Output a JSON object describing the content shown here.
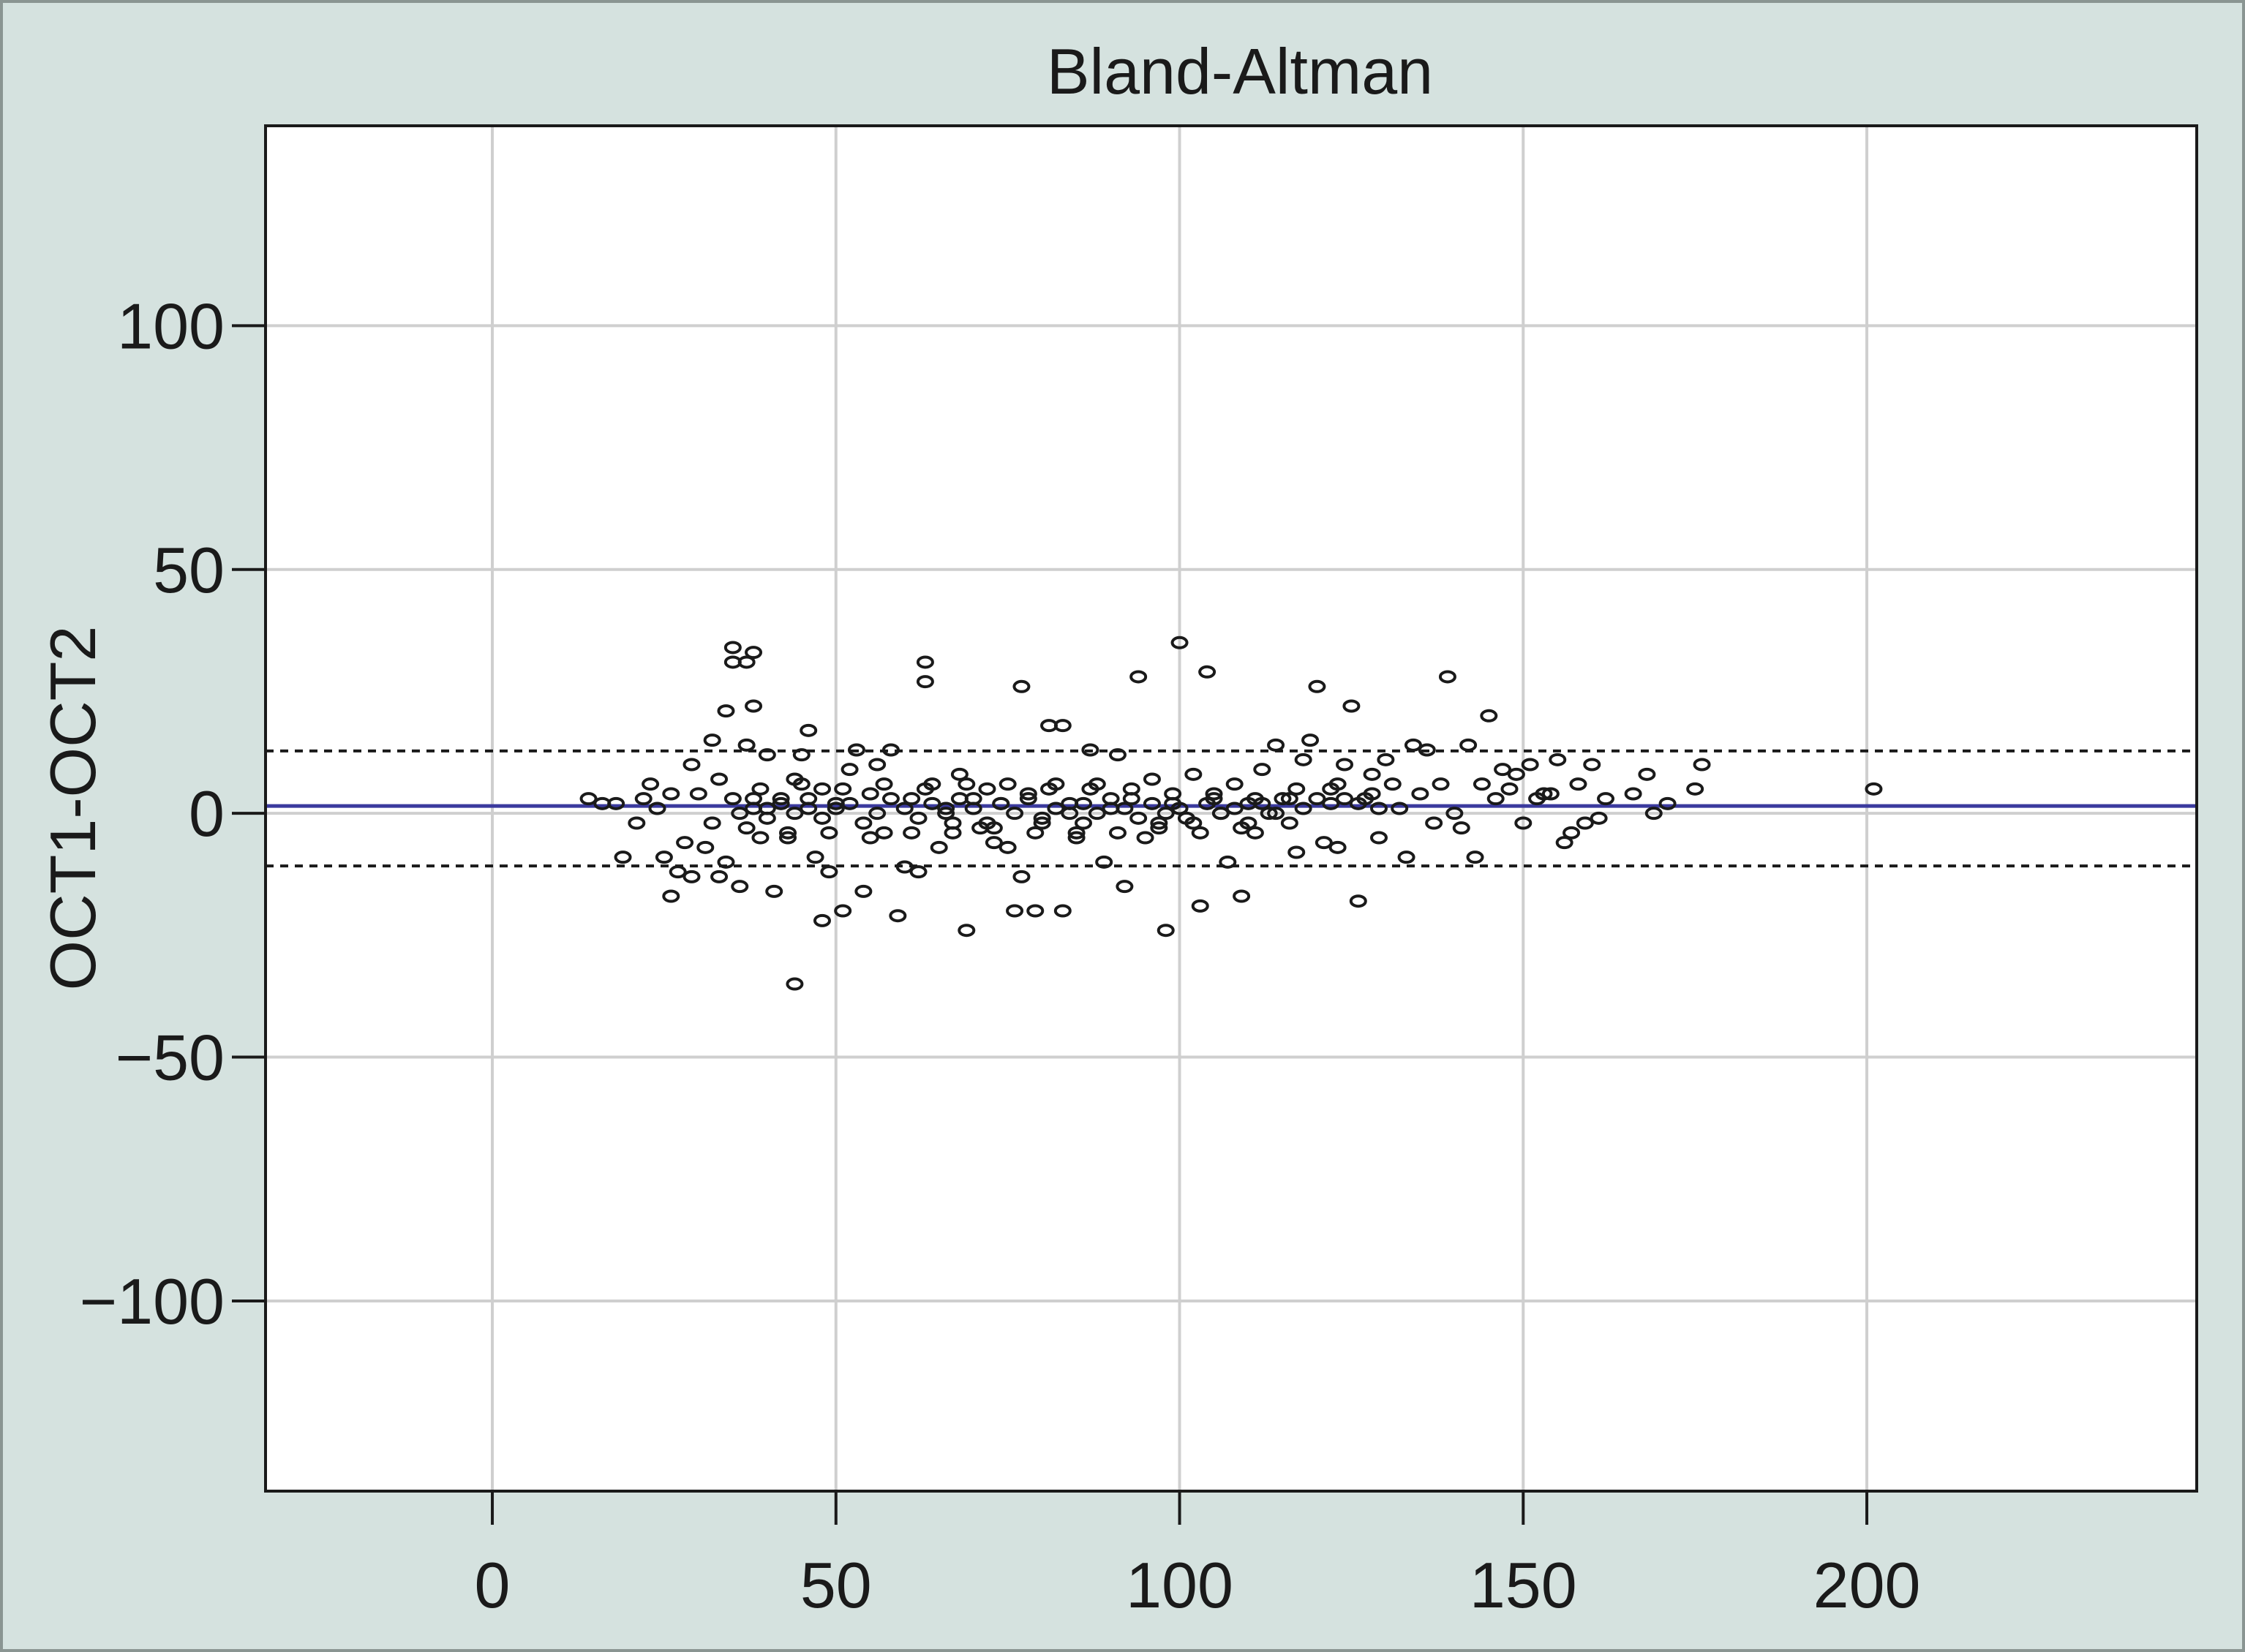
{
  "chart_data": {
    "type": "scatter",
    "title": "Bland-Altman",
    "xlabel": "",
    "ylabel": "OCT1-OCT2",
    "xlim": [
      -33,
      248
    ],
    "ylim": [
      -139,
      141
    ],
    "x_ticks": [
      0,
      50,
      100,
      150,
      200
    ],
    "y_ticks": [
      -100,
      -50,
      0,
      50,
      100
    ],
    "x_tick_labels": [
      "0",
      "50",
      "100",
      "150",
      "200"
    ],
    "y_tick_labels": [
      "−100",
      "−50",
      "0",
      "50",
      "100"
    ],
    "grid": true,
    "mean_difference": 1.5,
    "limits_of_agreement": [
      -10.8,
      12.8
    ],
    "colors": {
      "mean_line": "#3b3a9e",
      "points": "#1a1a1a",
      "background": "#d5e2df"
    },
    "series": [
      {
        "points": [
          [
            14,
            3
          ],
          [
            16,
            2
          ],
          [
            18,
            2
          ],
          [
            19,
            -9
          ],
          [
            21,
            -2
          ],
          [
            22,
            3
          ],
          [
            23,
            6
          ],
          [
            24,
            1
          ],
          [
            25,
            -9
          ],
          [
            26,
            4
          ],
          [
            26,
            -17
          ],
          [
            27,
            -12
          ],
          [
            28,
            -6
          ],
          [
            29,
            10
          ],
          [
            29,
            -13
          ],
          [
            30,
            4
          ],
          [
            31,
            -7
          ],
          [
            32,
            15
          ],
          [
            32,
            -2
          ],
          [
            33,
            -13
          ],
          [
            33,
            7
          ],
          [
            34,
            -10
          ],
          [
            34,
            21
          ],
          [
            35,
            34
          ],
          [
            35,
            31
          ],
          [
            35,
            3
          ],
          [
            36,
            -15
          ],
          [
            37,
            31
          ],
          [
            37,
            14
          ],
          [
            38,
            33
          ],
          [
            38,
            22
          ],
          [
            38,
            3
          ],
          [
            39,
            -5
          ],
          [
            40,
            1
          ],
          [
            40,
            12
          ],
          [
            41,
            -16
          ],
          [
            42,
            3
          ],
          [
            43,
            -4
          ],
          [
            44,
            -35
          ],
          [
            44,
            7
          ],
          [
            45,
            12
          ],
          [
            46,
            17
          ],
          [
            46,
            1
          ],
          [
            47,
            -9
          ],
          [
            48,
            -22
          ],
          [
            48,
            5
          ],
          [
            49,
            -12
          ],
          [
            50,
            2
          ],
          [
            51,
            -20
          ],
          [
            52,
            9
          ],
          [
            53,
            13
          ],
          [
            54,
            -16
          ],
          [
            55,
            4
          ],
          [
            56,
            10
          ],
          [
            57,
            -4
          ],
          [
            58,
            13
          ],
          [
            59,
            -21
          ],
          [
            60,
            -11
          ],
          [
            61,
            3
          ],
          [
            62,
            -12
          ],
          [
            63,
            31
          ],
          [
            63,
            27
          ],
          [
            64,
            6
          ],
          [
            65,
            -7
          ],
          [
            66,
            1
          ],
          [
            67,
            -2
          ],
          [
            68,
            8
          ],
          [
            69,
            -24
          ],
          [
            70,
            3
          ],
          [
            71,
            -3
          ],
          [
            72,
            5
          ],
          [
            73,
            -6
          ],
          [
            74,
            2
          ],
          [
            75,
            -7
          ],
          [
            76,
            -20
          ],
          [
            77,
            26
          ],
          [
            77,
            -13
          ],
          [
            78,
            4
          ],
          [
            79,
            -20
          ],
          [
            80,
            -2
          ],
          [
            81,
            18
          ],
          [
            82,
            6
          ],
          [
            83,
            -20
          ],
          [
            83,
            18
          ],
          [
            84,
            0
          ],
          [
            85,
            -4
          ],
          [
            86,
            2
          ],
          [
            87,
            13
          ],
          [
            88,
            6
          ],
          [
            89,
            -10
          ],
          [
            90,
            1
          ],
          [
            91,
            12
          ],
          [
            92,
            -15
          ],
          [
            93,
            3
          ],
          [
            94,
            28
          ],
          [
            95,
            -5
          ],
          [
            96,
            7
          ],
          [
            97,
            -2
          ],
          [
            98,
            -24
          ],
          [
            99,
            2
          ],
          [
            100,
            35
          ],
          [
            101,
            -1
          ],
          [
            102,
            8
          ],
          [
            103,
            -19
          ],
          [
            104,
            29
          ],
          [
            105,
            3
          ],
          [
            106,
            0
          ],
          [
            107,
            -10
          ],
          [
            108,
            6
          ],
          [
            109,
            -17
          ],
          [
            110,
            2
          ],
          [
            111,
            -4
          ],
          [
            112,
            9
          ],
          [
            113,
            0
          ],
          [
            114,
            14
          ],
          [
            115,
            3
          ],
          [
            116,
            -2
          ],
          [
            117,
            -8
          ],
          [
            118,
            11
          ],
          [
            119,
            15
          ],
          [
            120,
            26
          ],
          [
            121,
            -6
          ],
          [
            122,
            5
          ],
          [
            123,
            -7
          ],
          [
            124,
            10
          ],
          [
            125,
            22
          ],
          [
            126,
            -18
          ],
          [
            127,
            3
          ],
          [
            128,
            8
          ],
          [
            129,
            -5
          ],
          [
            130,
            11
          ],
          [
            131,
            6
          ],
          [
            132,
            1
          ],
          [
            133,
            -9
          ],
          [
            134,
            14
          ],
          [
            135,
            4
          ],
          [
            136,
            13
          ],
          [
            137,
            -2
          ],
          [
            138,
            6
          ],
          [
            139,
            28
          ],
          [
            140,
            0
          ],
          [
            141,
            -3
          ],
          [
            142,
            14
          ],
          [
            143,
            -9
          ],
          [
            144,
            6
          ],
          [
            145,
            20
          ],
          [
            146,
            3
          ],
          [
            147,
            9
          ],
          [
            148,
            5
          ],
          [
            149,
            8
          ],
          [
            150,
            -2
          ],
          [
            151,
            10
          ],
          [
            152,
            3
          ],
          [
            153,
            4
          ],
          [
            154,
            4
          ],
          [
            155,
            11
          ],
          [
            156,
            -6
          ],
          [
            157,
            -4
          ],
          [
            158,
            6
          ],
          [
            159,
            -2
          ],
          [
            160,
            10
          ],
          [
            161,
            -1
          ],
          [
            162,
            3
          ],
          [
            166,
            4
          ],
          [
            168,
            8
          ],
          [
            169,
            0
          ],
          [
            171,
            2
          ],
          [
            175,
            5
          ],
          [
            176,
            10
          ],
          [
            201,
            5
          ],
          [
            36,
            0
          ],
          [
            38,
            1
          ],
          [
            40,
            -1
          ],
          [
            42,
            2
          ],
          [
            44,
            0
          ],
          [
            46,
            3
          ],
          [
            48,
            -1
          ],
          [
            50,
            1
          ],
          [
            52,
            2
          ],
          [
            54,
            -2
          ],
          [
            56,
            0
          ],
          [
            58,
            3
          ],
          [
            60,
            1
          ],
          [
            62,
            -1
          ],
          [
            64,
            2
          ],
          [
            66,
            0
          ],
          [
            68,
            3
          ],
          [
            70,
            1
          ],
          [
            72,
            -2
          ],
          [
            74,
            2
          ],
          [
            76,
            0
          ],
          [
            78,
            3
          ],
          [
            80,
            -1
          ],
          [
            82,
            1
          ],
          [
            84,
            2
          ],
          [
            86,
            -2
          ],
          [
            88,
            0
          ],
          [
            90,
            3
          ],
          [
            92,
            1
          ],
          [
            94,
            -1
          ],
          [
            96,
            2
          ],
          [
            98,
            0
          ],
          [
            100,
            1
          ],
          [
            102,
            -2
          ],
          [
            104,
            2
          ],
          [
            106,
            0
          ],
          [
            108,
            1
          ],
          [
            110,
            -2
          ],
          [
            112,
            2
          ],
          [
            114,
            0
          ],
          [
            116,
            3
          ],
          [
            118,
            1
          ],
          [
            120,
            3
          ],
          [
            122,
            2
          ],
          [
            124,
            3
          ],
          [
            126,
            2
          ],
          [
            128,
            4
          ],
          [
            129,
            1
          ],
          [
            37,
            -3
          ],
          [
            43,
            -5
          ],
          [
            49,
            -4
          ],
          [
            55,
            -5
          ],
          [
            61,
            -4
          ],
          [
            67,
            -4
          ],
          [
            73,
            -3
          ],
          [
            79,
            -4
          ],
          [
            85,
            -5
          ],
          [
            91,
            -4
          ],
          [
            97,
            -3
          ],
          [
            103,
            -4
          ],
          [
            109,
            -3
          ],
          [
            39,
            5
          ],
          [
            45,
            6
          ],
          [
            51,
            5
          ],
          [
            57,
            6
          ],
          [
            63,
            5
          ],
          [
            69,
            6
          ],
          [
            75,
            6
          ],
          [
            81,
            5
          ],
          [
            87,
            5
          ],
          [
            93,
            5
          ],
          [
            99,
            4
          ],
          [
            105,
            4
          ],
          [
            111,
            3
          ],
          [
            117,
            5
          ],
          [
            123,
            6
          ]
        ]
      }
    ]
  }
}
